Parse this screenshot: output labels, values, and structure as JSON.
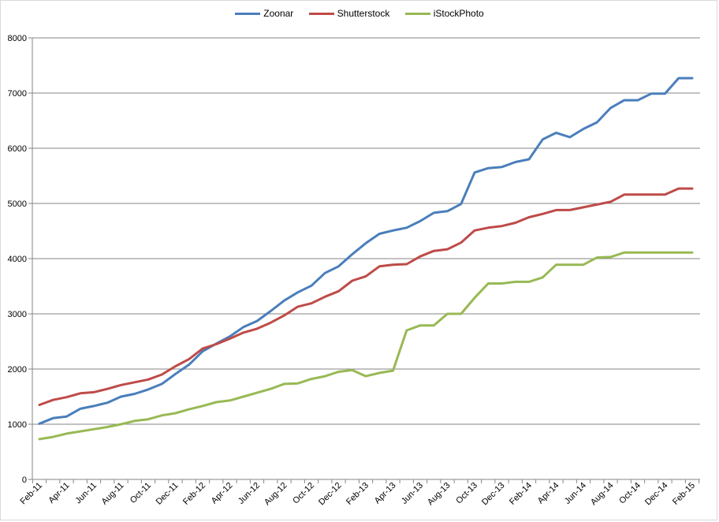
{
  "chart_data": {
    "type": "line",
    "title": "",
    "xlabel": "",
    "ylabel": "",
    "ylim": [
      0,
      8000
    ],
    "yticks": [
      0,
      1000,
      2000,
      3000,
      4000,
      5000,
      6000,
      7000,
      8000
    ],
    "grid": true,
    "legend_position": "top",
    "x": [
      "Feb-11",
      "Mar-11",
      "Apr-11",
      "May-11",
      "Jun-11",
      "Jul-11",
      "Aug-11",
      "Sep-11",
      "Oct-11",
      "Nov-11",
      "Dec-11",
      "Jan-12",
      "Feb-12",
      "Mar-12",
      "Apr-12",
      "May-12",
      "Jun-12",
      "Jul-12",
      "Aug-12",
      "Sep-12",
      "Oct-12",
      "Nov-12",
      "Dec-12",
      "Jan-13",
      "Feb-13",
      "Mar-13",
      "Apr-13",
      "May-13",
      "Jun-13",
      "Jul-13",
      "Aug-13",
      "Sep-13",
      "Oct-13",
      "Nov-13",
      "Dec-13",
      "Jan-14",
      "Feb-14",
      "Mar-14",
      "Apr-14",
      "May-14",
      "Jun-14",
      "Jul-14",
      "Aug-14",
      "Sep-14",
      "Oct-14",
      "Nov-14",
      "Dec-14",
      "Jan-15",
      "Feb-15"
    ],
    "x_tick_labels": [
      "Feb-11",
      "Apr-11",
      "Jun-11",
      "Aug-11",
      "Oct-11",
      "Dec-11",
      "Feb-12",
      "Apr-12",
      "Jun-12",
      "Aug-12",
      "Oct-12",
      "Dec-12",
      "Feb-13",
      "Apr-13",
      "Jun-13",
      "Aug-13",
      "Oct-13",
      "Dec-13",
      "Feb-14",
      "Apr-14",
      "Jun-14",
      "Aug-14",
      "Oct-14",
      "Dec-14",
      "Feb-15"
    ],
    "series": [
      {
        "name": "Zoonar",
        "color": "#4a7ebb",
        "values": [
          1010,
          1110,
          1140,
          1280,
          1330,
          1390,
          1500,
          1550,
          1630,
          1730,
          1910,
          2080,
          2320,
          2460,
          2590,
          2760,
          2870,
          3050,
          3240,
          3390,
          3510,
          3740,
          3860,
          4080,
          4280,
          4450,
          4510,
          4560,
          4680,
          4830,
          4860,
          4990,
          5560,
          5640,
          5660,
          5750,
          5800,
          6160,
          6280,
          6200,
          6350,
          6470,
          6730,
          6870,
          6870,
          6990,
          6990,
          7270,
          7270
        ]
      },
      {
        "name": "Shutterstock",
        "color": "#be4b48",
        "values": [
          1350,
          1440,
          1490,
          1560,
          1580,
          1640,
          1710,
          1760,
          1810,
          1900,
          2050,
          2180,
          2370,
          2450,
          2550,
          2660,
          2730,
          2840,
          2970,
          3130,
          3190,
          3310,
          3410,
          3600,
          3680,
          3860,
          3890,
          3900,
          4040,
          4140,
          4170,
          4290,
          4510,
          4560,
          4590,
          4650,
          4750,
          4810,
          4880,
          4880,
          4930,
          4980,
          5030,
          5160,
          5160,
          5160,
          5160,
          5270,
          5270
        ]
      },
      {
        "name": "iStockPhoto",
        "color": "#98b954",
        "values": [
          730,
          770,
          830,
          870,
          910,
          950,
          1000,
          1060,
          1090,
          1160,
          1200,
          1270,
          1330,
          1400,
          1430,
          1500,
          1570,
          1640,
          1730,
          1740,
          1820,
          1870,
          1950,
          1980,
          1870,
          1930,
          1970,
          2700,
          2790,
          2790,
          3000,
          3000,
          3290,
          3550,
          3550,
          3580,
          3580,
          3660,
          3890,
          3890,
          3890,
          4020,
          4030,
          4110,
          4110,
          4110,
          4110,
          4110,
          4110
        ]
      }
    ]
  }
}
